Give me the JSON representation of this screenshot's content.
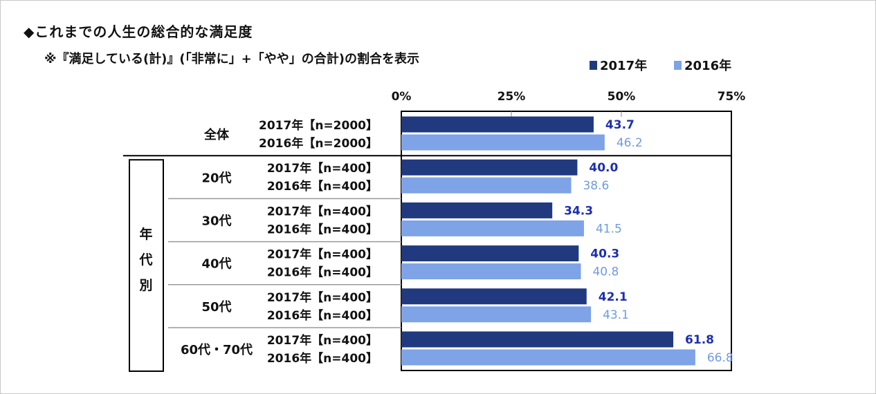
{
  "title": "◆これまでの人生の総合的な満足度",
  "subtitle": "※『満足している(計)』(「非常に」+「やや」の合計)の割合を表示",
  "colors": {
    "s2017": "#213a7f",
    "s2016": "#7ea3e6",
    "label2017": "#1d2fb0",
    "label2016": "#6f9be0"
  },
  "chart_data": {
    "type": "bar",
    "orientation": "horizontal",
    "xlim": [
      0,
      75
    ],
    "ticks": [
      "0%",
      "25%",
      "50%",
      "75%"
    ],
    "legend": [
      "2017年",
      "2016年"
    ],
    "legend_position": "top-right",
    "side_label": "年代別",
    "groups": [
      {
        "label": "全体",
        "rows": [
          {
            "label": "2017年【n=2000】",
            "year": "2017",
            "value": 43.7
          },
          {
            "label": "2016年【n=2000】",
            "year": "2016",
            "value": 46.2
          }
        ]
      },
      {
        "label": "20代",
        "rows": [
          {
            "label": "2017年【n=400】",
            "year": "2017",
            "value": 40.0
          },
          {
            "label": "2016年【n=400】",
            "year": "2016",
            "value": 38.6
          }
        ]
      },
      {
        "label": "30代",
        "rows": [
          {
            "label": "2017年【n=400】",
            "year": "2017",
            "value": 34.3
          },
          {
            "label": "2016年【n=400】",
            "year": "2016",
            "value": 41.5
          }
        ]
      },
      {
        "label": "40代",
        "rows": [
          {
            "label": "2017年【n=400】",
            "year": "2017",
            "value": 40.3
          },
          {
            "label": "2016年【n=400】",
            "year": "2016",
            "value": 40.8
          }
        ]
      },
      {
        "label": "50代",
        "rows": [
          {
            "label": "2017年【n=400】",
            "year": "2017",
            "value": 42.1
          },
          {
            "label": "2016年【n=400】",
            "year": "2016",
            "value": 43.1
          }
        ]
      },
      {
        "label": "60代・70代",
        "rows": [
          {
            "label": "2017年【n=400】",
            "year": "2017",
            "value": 61.8
          },
          {
            "label": "2016年【n=400】",
            "year": "2016",
            "value": 66.8
          }
        ]
      }
    ]
  }
}
